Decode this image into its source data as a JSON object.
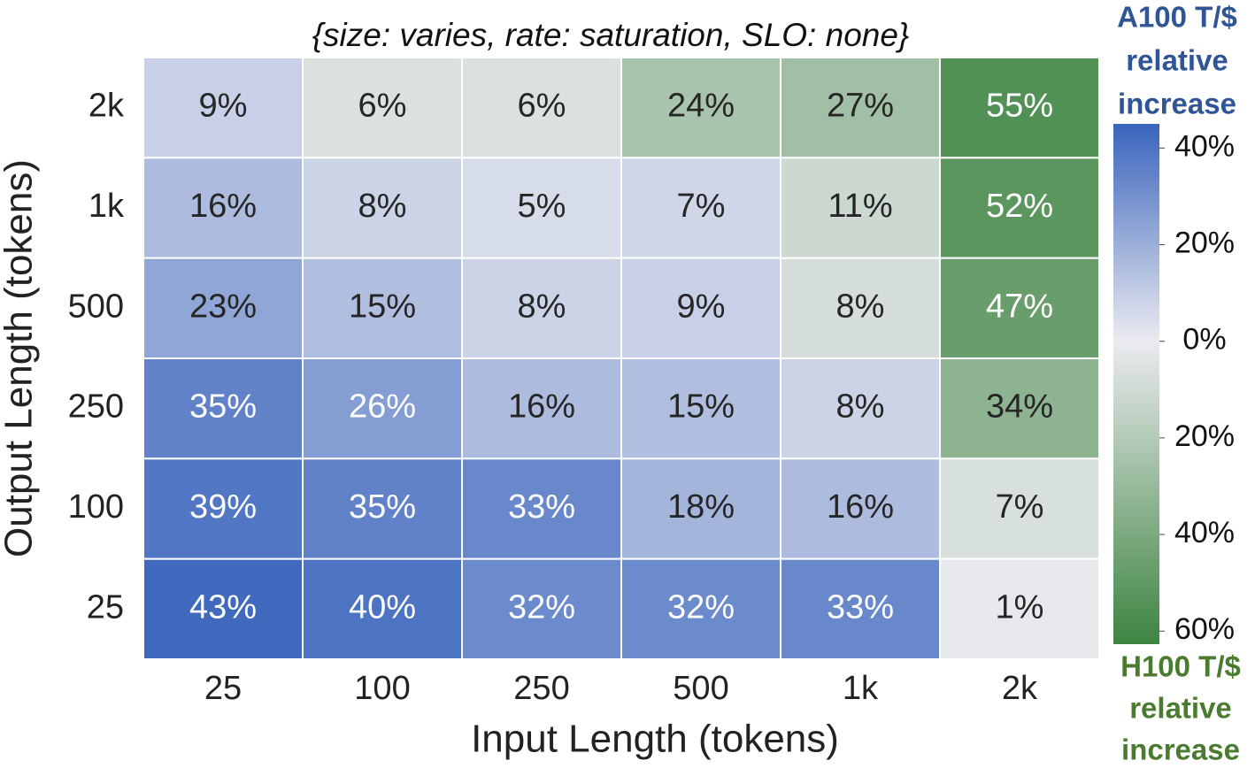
{
  "chart_data": {
    "type": "heatmap",
    "title": "{size: varies, rate: saturation, SLO: none}",
    "x_label": "Input Length (tokens)",
    "y_label": "Output Length (tokens)",
    "x_categories": [
      "25",
      "100",
      "250",
      "500",
      "1k",
      "2k"
    ],
    "y_categories": [
      "2k",
      "1k",
      "500",
      "250",
      "100",
      "25"
    ],
    "values": [
      [
        9,
        -6,
        -6,
        -24,
        -27,
        -55
      ],
      [
        16,
        8,
        5,
        7,
        -11,
        -52
      ],
      [
        23,
        15,
        8,
        9,
        -8,
        -47
      ],
      [
        35,
        26,
        16,
        15,
        8,
        -34
      ],
      [
        39,
        35,
        33,
        18,
        16,
        -7
      ],
      [
        43,
        40,
        32,
        32,
        33,
        -1
      ]
    ],
    "value_labels": [
      [
        "9%",
        "6%",
        "6%",
        "24%",
        "27%",
        "55%"
      ],
      [
        "16%",
        "8%",
        "5%",
        "7%",
        "11%",
        "52%"
      ],
      [
        "23%",
        "15%",
        "8%",
        "9%",
        "8%",
        "47%"
      ],
      [
        "35%",
        "26%",
        "16%",
        "15%",
        "8%",
        "34%"
      ],
      [
        "39%",
        "35%",
        "33%",
        "18%",
        "16%",
        "7%"
      ],
      [
        "43%",
        "40%",
        "32%",
        "32%",
        "33%",
        "1%"
      ]
    ],
    "zlim": [
      -62.7,
      45
    ],
    "zticks": [
      {
        "value": 40,
        "label": "40%"
      },
      {
        "value": 20,
        "label": "20%"
      },
      {
        "value": 0,
        "label": "0%"
      },
      {
        "value": -20,
        "label": "20%"
      },
      {
        "value": -40,
        "label": "40%"
      },
      {
        "value": -60,
        "label": "60%"
      }
    ],
    "colors": {
      "high": "#3964bd",
      "mid": "#ebebf0",
      "low": "#3d8440"
    },
    "colorbar_high_label": [
      "A100 T/$",
      "relative",
      "increase"
    ],
    "colorbar_high_color": "#2f5597",
    "colorbar_low_label": [
      "H100 T/$",
      "relative",
      "increase"
    ],
    "colorbar_low_color": "#4a7b2f"
  }
}
